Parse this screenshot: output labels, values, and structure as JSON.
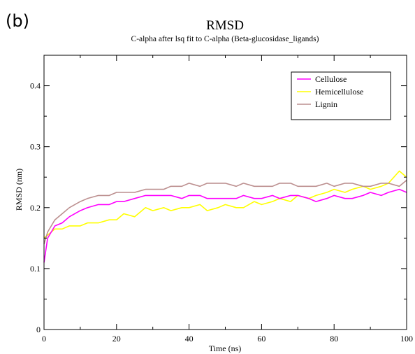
{
  "panel_label": "(b)",
  "chart_data": {
    "type": "line",
    "title": "RMSD",
    "subtitle": "C-alpha after lsq fit to C-alpha (Beta-glucosidase_ligands)",
    "xlabel": "Time (ns)",
    "ylabel": "RMSD (nm)",
    "xlim": [
      0,
      100
    ],
    "ylim": [
      0,
      0.45
    ],
    "x_ticks": [
      0,
      20,
      40,
      60,
      80,
      100
    ],
    "y_ticks": [
      0,
      0.1,
      0.2,
      0.3,
      0.4
    ],
    "x_tick_labels": [
      "0",
      "20",
      "40",
      "60",
      "80",
      "100"
    ],
    "y_tick_labels": [
      "0",
      "0.1",
      "0.2",
      "0.3",
      "0.4"
    ],
    "grid": false,
    "legend_position": "top-right",
    "series": [
      {
        "name": "Cellulose",
        "color": "#ff00ff",
        "x": [
          0,
          1,
          2,
          3,
          5,
          7,
          10,
          12,
          15,
          18,
          20,
          22,
          25,
          28,
          30,
          33,
          35,
          38,
          40,
          43,
          45,
          48,
          50,
          53,
          55,
          58,
          60,
          63,
          65,
          68,
          70,
          73,
          75,
          78,
          80,
          83,
          85,
          88,
          90,
          93,
          95,
          98,
          100
        ],
        "y": [
          0.11,
          0.15,
          0.16,
          0.17,
          0.175,
          0.185,
          0.195,
          0.2,
          0.205,
          0.205,
          0.21,
          0.21,
          0.215,
          0.22,
          0.22,
          0.22,
          0.22,
          0.215,
          0.22,
          0.22,
          0.215,
          0.215,
          0.215,
          0.215,
          0.22,
          0.215,
          0.215,
          0.22,
          0.215,
          0.22,
          0.22,
          0.215,
          0.21,
          0.215,
          0.22,
          0.215,
          0.215,
          0.22,
          0.225,
          0.22,
          0.225,
          0.23,
          0.225
        ]
      },
      {
        "name": "Hemicellulose",
        "color": "#ffff00",
        "x": [
          0,
          1,
          2,
          3,
          5,
          7,
          10,
          12,
          15,
          18,
          20,
          22,
          25,
          28,
          30,
          33,
          35,
          38,
          40,
          43,
          45,
          48,
          50,
          53,
          55,
          58,
          60,
          63,
          65,
          68,
          70,
          73,
          75,
          78,
          80,
          83,
          85,
          88,
          90,
          93,
          95,
          98,
          100
        ],
        "y": [
          0.15,
          0.155,
          0.16,
          0.165,
          0.165,
          0.17,
          0.17,
          0.175,
          0.175,
          0.18,
          0.18,
          0.19,
          0.185,
          0.2,
          0.195,
          0.2,
          0.195,
          0.2,
          0.2,
          0.205,
          0.195,
          0.2,
          0.205,
          0.2,
          0.2,
          0.21,
          0.205,
          0.21,
          0.215,
          0.21,
          0.22,
          0.215,
          0.22,
          0.225,
          0.23,
          0.225,
          0.23,
          0.235,
          0.23,
          0.235,
          0.24,
          0.26,
          0.25
        ]
      },
      {
        "name": "Lignin",
        "color": "#bc8f8f",
        "x": [
          0,
          1,
          2,
          3,
          5,
          7,
          10,
          12,
          15,
          18,
          20,
          22,
          25,
          28,
          30,
          33,
          35,
          38,
          40,
          43,
          45,
          48,
          50,
          53,
          55,
          58,
          60,
          63,
          65,
          68,
          70,
          73,
          75,
          78,
          80,
          83,
          85,
          88,
          90,
          93,
          95,
          98,
          100
        ],
        "y": [
          0.14,
          0.16,
          0.17,
          0.18,
          0.19,
          0.2,
          0.21,
          0.215,
          0.22,
          0.22,
          0.225,
          0.225,
          0.225,
          0.23,
          0.23,
          0.23,
          0.235,
          0.235,
          0.24,
          0.235,
          0.24,
          0.24,
          0.24,
          0.235,
          0.24,
          0.235,
          0.235,
          0.235,
          0.24,
          0.24,
          0.235,
          0.235,
          0.235,
          0.24,
          0.235,
          0.24,
          0.24,
          0.235,
          0.235,
          0.24,
          0.24,
          0.235,
          0.245
        ]
      }
    ]
  }
}
